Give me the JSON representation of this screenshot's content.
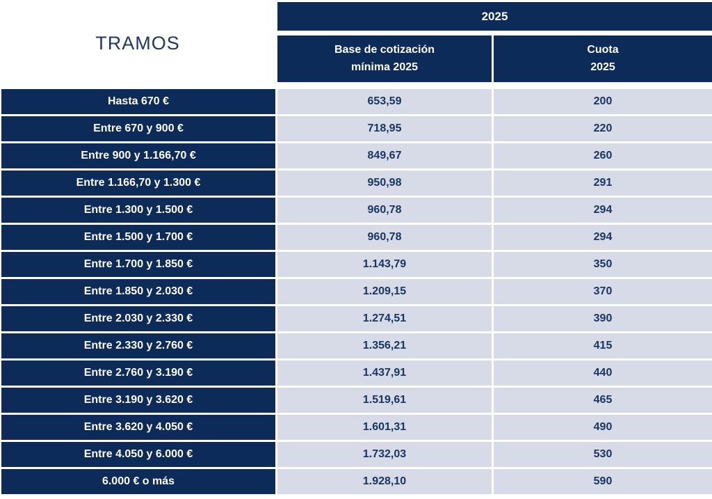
{
  "header": {
    "tramos_label": "TRAMOS",
    "year": "2025",
    "base_col_line1": "Base de cotización",
    "base_col_line2": "mínima 2025",
    "cuota_col_line1": "Cuota",
    "cuota_col_line2": "2025"
  },
  "colors": {
    "navy": "#0d2b58",
    "light_cell": "#d6dbe7",
    "text_navy": "#173560",
    "tramos_text": "#1f3864",
    "background": "#ffffff"
  },
  "chart_data": {
    "type": "table",
    "title": "2025",
    "columns": [
      "TRAMOS",
      "Base de cotización mínima 2025",
      "Cuota 2025"
    ],
    "rows": [
      {
        "tramo": "Hasta 670 €",
        "base": "653,59",
        "cuota": "200"
      },
      {
        "tramo": "Entre 670 y 900 €",
        "base": "718,95",
        "cuota": "220"
      },
      {
        "tramo": "Entre 900 y 1.166,70 €",
        "base": "849,67",
        "cuota": "260"
      },
      {
        "tramo": "Entre 1.166,70 y 1.300 €",
        "base": "950,98",
        "cuota": "291"
      },
      {
        "tramo": "Entre 1.300 y 1.500 €",
        "base": "960,78",
        "cuota": "294"
      },
      {
        "tramo": "Entre 1.500 y 1.700 €",
        "base": "960,78",
        "cuota": "294"
      },
      {
        "tramo": "Entre 1.700 y 1.850 €",
        "base": "1.143,79",
        "cuota": "350"
      },
      {
        "tramo": "Entre 1.850 y 2.030 €",
        "base": "1.209,15",
        "cuota": "370"
      },
      {
        "tramo": "Entre 2.030 y 2.330 €",
        "base": "1.274,51",
        "cuota": "390"
      },
      {
        "tramo": "Entre 2.330 y 2.760 €",
        "base": "1.356,21",
        "cuota": "415"
      },
      {
        "tramo": "Entre 2.760 y 3.190 €",
        "base": "1.437,91",
        "cuota": "440"
      },
      {
        "tramo": "Entre 3.190 y 3.620 €",
        "base": "1.519,61",
        "cuota": "465"
      },
      {
        "tramo": "Entre 3.620 y 4.050 €",
        "base": "1.601,31",
        "cuota": "490"
      },
      {
        "tramo": "Entre 4.050 y 6.000 €",
        "base": "1.732,03",
        "cuota": "530"
      },
      {
        "tramo": "6.000 € o más",
        "base": "1.928,10",
        "cuota": "590"
      }
    ]
  }
}
